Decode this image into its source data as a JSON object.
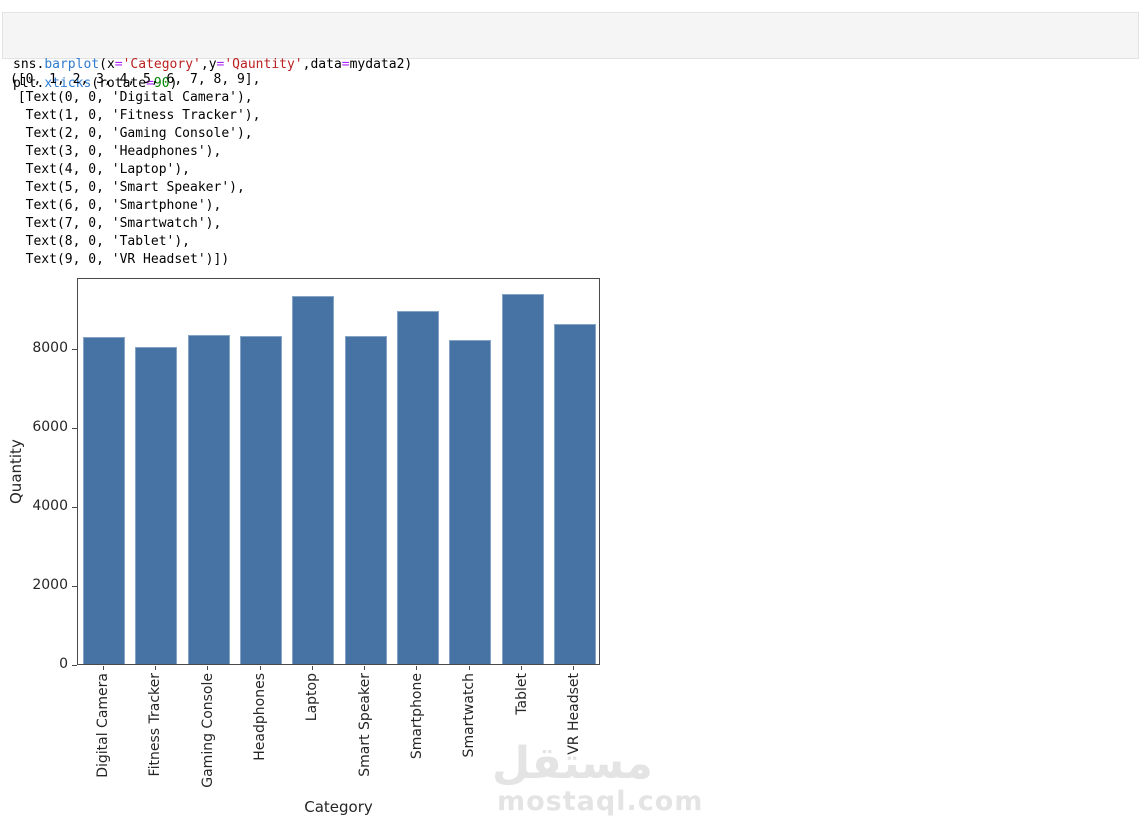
{
  "code_cell": {
    "lines": [
      [
        {
          "t": "sns",
          "c": "v"
        },
        {
          "t": ".",
          "c": "p"
        },
        {
          "t": "barplot",
          "c": "prop"
        },
        {
          "t": "(",
          "c": "p"
        },
        {
          "t": "x",
          "c": "v"
        },
        {
          "t": "=",
          "c": "op"
        },
        {
          "t": "'Category'",
          "c": "str"
        },
        {
          "t": ",",
          "c": "p"
        },
        {
          "t": "y",
          "c": "v"
        },
        {
          "t": "=",
          "c": "op"
        },
        {
          "t": "'Qauntity'",
          "c": "str"
        },
        {
          "t": ",",
          "c": "p"
        },
        {
          "t": "data",
          "c": "v"
        },
        {
          "t": "=",
          "c": "op"
        },
        {
          "t": "mydata2",
          "c": "v"
        },
        {
          "t": ")",
          "c": "p"
        }
      ],
      [
        {
          "t": "plt",
          "c": "v"
        },
        {
          "t": ".",
          "c": "p"
        },
        {
          "t": "xticks",
          "c": "prop"
        },
        {
          "t": "(",
          "c": "p"
        },
        {
          "t": "rotate",
          "c": "v"
        },
        {
          "t": "=",
          "c": "op"
        },
        {
          "t": "90",
          "c": "num"
        },
        {
          "t": ")",
          "c": "p"
        }
      ]
    ]
  },
  "output_text": {
    "lines": [
      "([0, 1, 2, 3, 4, 5, 6, 7, 8, 9],",
      " [Text(0, 0, 'Digital Camera'),",
      "  Text(1, 0, 'Fitness Tracker'),",
      "  Text(2, 0, 'Gaming Console'),",
      "  Text(3, 0, 'Headphones'),",
      "  Text(4, 0, 'Laptop'),",
      "  Text(5, 0, 'Smart Speaker'),",
      "  Text(6, 0, 'Smartphone'),",
      "  Text(7, 0, 'Smartwatch'),",
      "  Text(8, 0, 'Tablet'),",
      "  Text(9, 0, 'VR Headset')])"
    ]
  },
  "chart_data": {
    "type": "bar",
    "categories": [
      "Digital Camera",
      "Fitness Tracker",
      "Gaming Console",
      "Headphones",
      "Laptop",
      "Smart Speaker",
      "Smartphone",
      "Smartwatch",
      "Tablet",
      "VR Headset"
    ],
    "values": [
      8270,
      8030,
      8330,
      8310,
      9330,
      8310,
      8930,
      8200,
      9360,
      8610
    ],
    "title": "",
    "xlabel": "Category",
    "ylabel": "Quantity",
    "ylim": [
      0,
      9800
    ],
    "yticks": [
      0,
      2000,
      4000,
      6000,
      8000
    ],
    "xtick_rotation": 90,
    "grid": false,
    "legend": null,
    "bar_color": "#4673a3"
  },
  "watermark": {
    "arabic": "مستقل",
    "domain": "mostaql.com"
  }
}
